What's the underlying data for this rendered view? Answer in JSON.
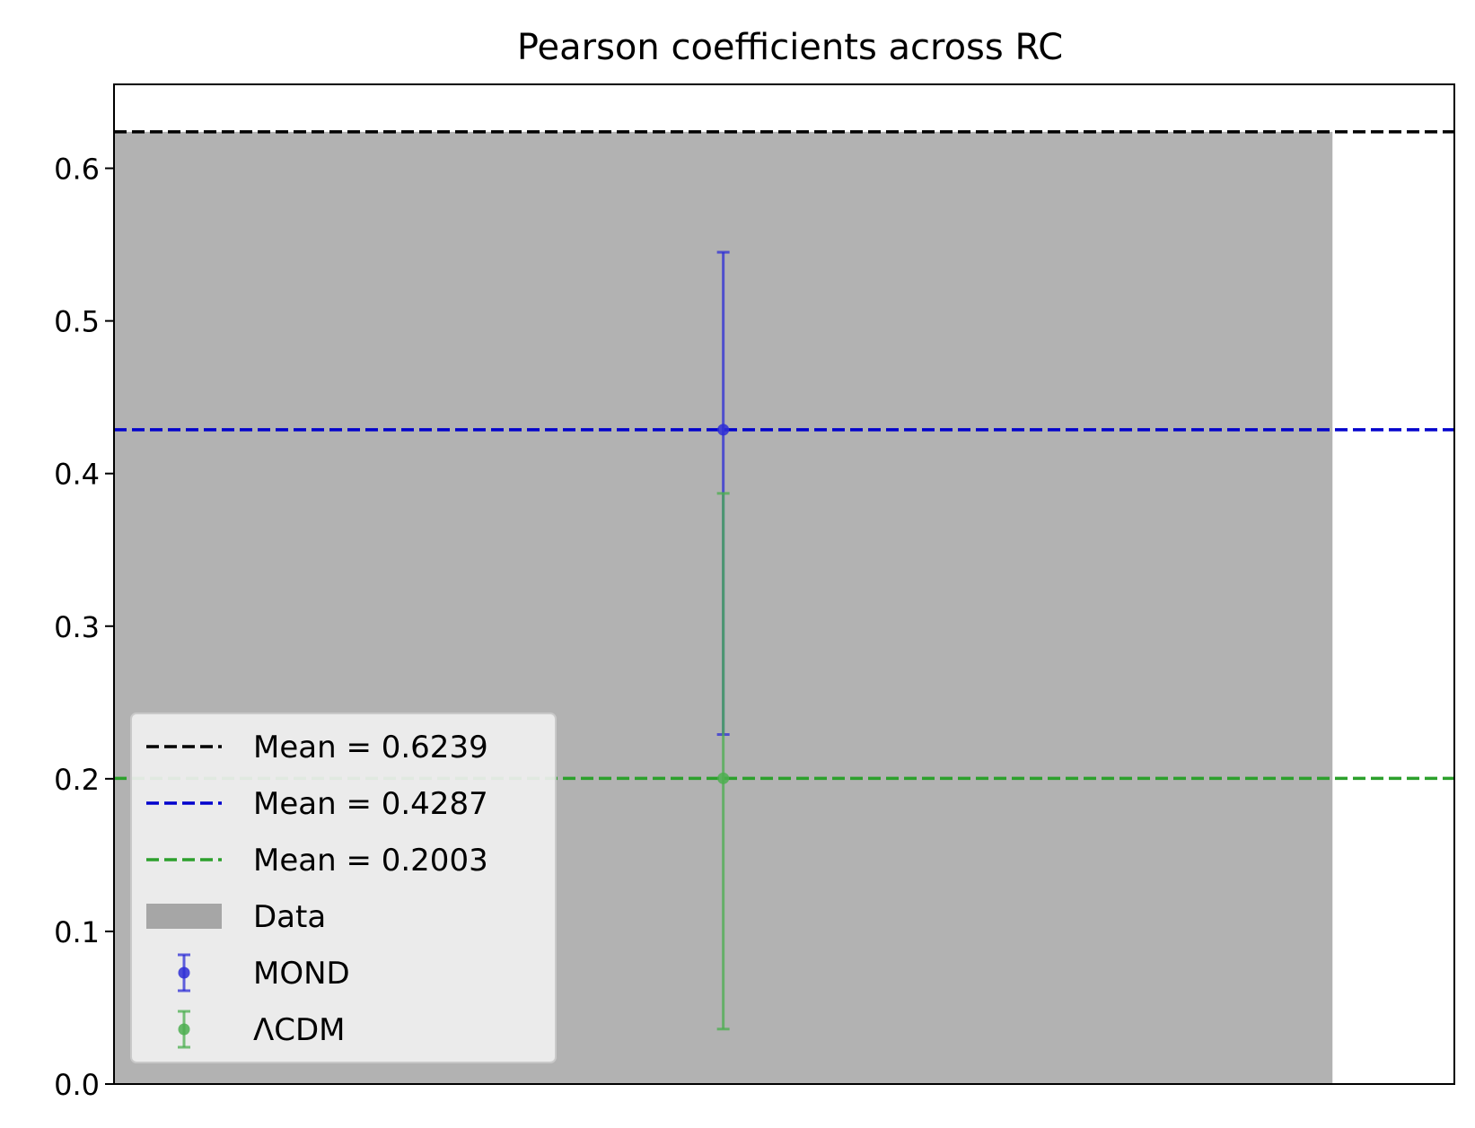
{
  "chart_data": {
    "type": "bar",
    "title": "Pearson coefficients across RC",
    "xlabel": "",
    "ylabel": "",
    "ylim": [
      0,
      0.655
    ],
    "xlim": [
      -0.5,
      0.6
    ],
    "yticks": [
      {
        "value": 0.0,
        "label": "0.0"
      },
      {
        "value": 0.1,
        "label": "0.1"
      },
      {
        "value": 0.2,
        "label": "0.2"
      },
      {
        "value": 0.3,
        "label": "0.3"
      },
      {
        "value": 0.4,
        "label": "0.4"
      },
      {
        "value": 0.5,
        "label": "0.5"
      },
      {
        "value": 0.6,
        "label": "0.6"
      }
    ],
    "grid": false,
    "legend_position": "lower-left",
    "bar": {
      "name": "Data",
      "x": 0,
      "width": 1.0,
      "value": 0.6239,
      "color": "#b2b2b2",
      "legend_color": "#a6a6a6"
    },
    "mean_lines": [
      {
        "label": "Mean = 0.6239",
        "value": 0.6239,
        "color": "#000000"
      },
      {
        "label": "Mean = 0.4287",
        "value": 0.4287,
        "color": "#0000cc"
      },
      {
        "label": "Mean = 0.2003",
        "value": 0.2003,
        "color": "#2ca02c"
      }
    ],
    "series": [
      {
        "name": "MOND",
        "x": 0,
        "y": 0.4287,
        "yerr_low": 0.229,
        "yerr_high": 0.545,
        "color": "#2e2ed6"
      },
      {
        "name": "ΛCDM",
        "x": 0,
        "y": 0.2003,
        "yerr_low": 0.036,
        "yerr_high": 0.387,
        "color": "#4caf50"
      }
    ]
  }
}
